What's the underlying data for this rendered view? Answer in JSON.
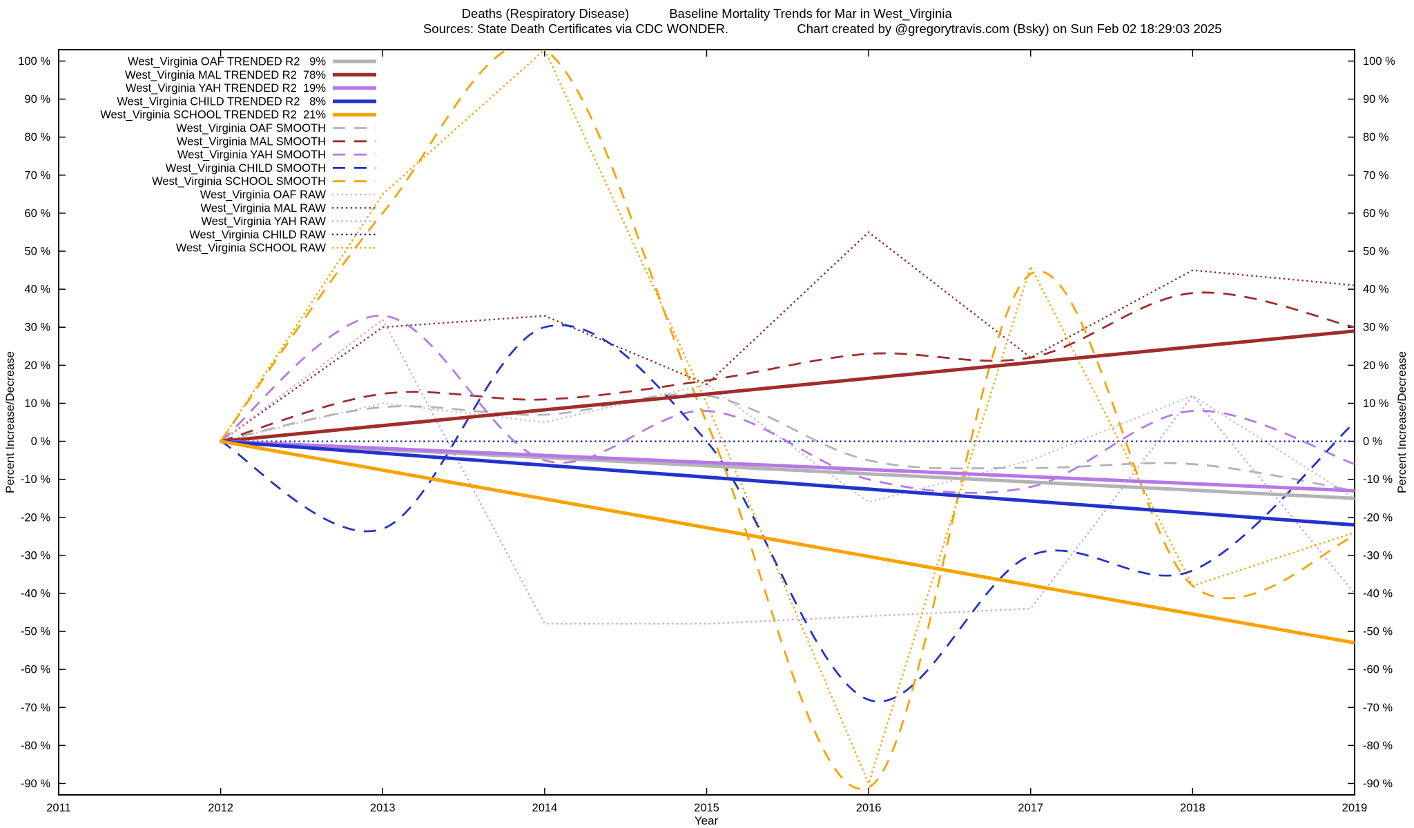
{
  "titles": {
    "line1_left": "Deaths (Respiratory Disease)",
    "line1_right": "Baseline Mortality Trends for Mar in West_Virginia",
    "line2_left": "Sources: State Death Certificates via CDC WONDER.",
    "line2_right": "Chart created by @gregorytravis.com (Bsky) on Sun Feb 02 18:29:03 2025"
  },
  "chart_data": {
    "type": "line",
    "title": "Deaths (Respiratory Disease)  Baseline Mortality Trends for Mar in West_Virginia",
    "xlabel": "Year",
    "ylabel": "Percent Increase/Decrease",
    "y2label": "Percent Increase/Decrease",
    "xlim": [
      2011,
      2019
    ],
    "ylim": [
      -93,
      103
    ],
    "xticks": [
      2011,
      2012,
      2013,
      2014,
      2015,
      2016,
      2017,
      2018,
      2019
    ],
    "yticks": [
      -90,
      -80,
      -70,
      -60,
      -50,
      -40,
      -30,
      -20,
      -10,
      0,
      10,
      20,
      30,
      40,
      50,
      60,
      70,
      80,
      90,
      100
    ],
    "ytick_suffix": " %",
    "grid": false,
    "legend_position": "top-left",
    "series": [
      {
        "id": "oaf-trended",
        "label": "West_Virginia OAF TRENDED R2   9%",
        "r2_percent": 9,
        "color": "#b3b3b3",
        "style": "trended",
        "x": [
          2012,
          2019
        ],
        "y": [
          0,
          -15
        ]
      },
      {
        "id": "mal-trended",
        "label": "West_Virginia MAL TRENDED R2  78%",
        "r2_percent": 78,
        "color": "#a02c2c",
        "style": "trended",
        "x": [
          2012,
          2019
        ],
        "y": [
          0,
          29
        ]
      },
      {
        "id": "yah-trended",
        "label": "West_Virginia YAH TRENDED R2  19%",
        "r2_percent": 19,
        "color": "#b678e6",
        "style": "trended",
        "x": [
          2012,
          2019
        ],
        "y": [
          0,
          -13
        ]
      },
      {
        "id": "child-trended",
        "label": "West_Virginia CHILD TRENDED R2   8%",
        "r2_percent": 8,
        "color": "#2233cc",
        "style": "trended",
        "x": [
          2012,
          2019
        ],
        "y": [
          0,
          -22
        ]
      },
      {
        "id": "school-trended",
        "label": "West_Virginia SCHOOL TRENDED R2  21%",
        "r2_percent": 21,
        "color": "#f7a300",
        "style": "trended",
        "x": [
          2012,
          2019
        ],
        "y": [
          0,
          -53
        ]
      },
      {
        "id": "oaf-smooth",
        "label": "West_Virginia OAF SMOOTH",
        "color": "#b3b3b3",
        "style": "smooth",
        "x": [
          2012,
          2013,
          2014,
          2015,
          2016,
          2017,
          2018,
          2019
        ],
        "y": [
          0,
          9,
          7,
          12,
          -5,
          -7,
          -6,
          -13
        ]
      },
      {
        "id": "mal-smooth",
        "label": "West_Virginia MAL SMOOTH",
        "color": "#a02c2c",
        "style": "smooth",
        "x": [
          2012,
          2013,
          2014,
          2015,
          2016,
          2017,
          2018,
          2019
        ],
        "y": [
          0,
          12.5,
          11,
          16,
          23,
          22,
          39,
          30
        ]
      },
      {
        "id": "yah-smooth",
        "label": "West_Virginia YAH SMOOTH",
        "color": "#b678e6",
        "style": "smooth",
        "x": [
          2012,
          2013,
          2014,
          2015,
          2016,
          2017,
          2018,
          2019
        ],
        "y": [
          0,
          33,
          -5,
          8,
          -10,
          -12,
          8,
          -6
        ]
      },
      {
        "id": "child-smooth",
        "label": "West_Virginia CHILD SMOOTH",
        "color": "#2233cc",
        "style": "smooth",
        "x": [
          2012,
          2013,
          2014,
          2015,
          2016,
          2017,
          2018,
          2019
        ],
        "y": [
          0,
          -23,
          30,
          0,
          -68,
          -30,
          -34,
          5
        ]
      },
      {
        "id": "school-smooth",
        "label": "West_Virginia SCHOOL SMOOTH",
        "color": "#f7a300",
        "style": "smooth",
        "x": [
          2012,
          2013,
          2014,
          2015,
          2016,
          2017,
          2018,
          2019
        ],
        "y": [
          0,
          60,
          103,
          5,
          -91,
          44,
          -38,
          -25
        ]
      },
      {
        "id": "oaf-raw",
        "label": "West_Virginia OAF RAW",
        "color": "#c4c4c4",
        "style": "raw",
        "x": [
          2012,
          2013,
          2014,
          2015,
          2016,
          2017,
          2018,
          2019
        ],
        "y": [
          0,
          10,
          5,
          15,
          -16,
          -5,
          12,
          -15
        ]
      },
      {
        "id": "mal-raw",
        "label": "West_Virginia MAL RAW",
        "color": "#a02c2c",
        "style": "raw",
        "x": [
          2012,
          2013,
          2014,
          2015,
          2016,
          2017,
          2018,
          2019
        ],
        "y": [
          0,
          30,
          33,
          15,
          55,
          22,
          45,
          41
        ]
      },
      {
        "id": "yah-raw",
        "label": "West_Virginia YAH RAW",
        "color": "#cba4f0",
        "style": "raw",
        "x": [
          2012,
          2013,
          2014,
          2015,
          2016,
          2017,
          2018,
          2019
        ],
        "y": [
          0,
          32,
          -48,
          -48,
          -46,
          -44,
          12,
          -40
        ]
      },
      {
        "id": "child-raw",
        "label": "West_Virginia CHILD RAW",
        "color": "#2233cc",
        "style": "raw",
        "x": [
          2012,
          2013,
          2014,
          2015,
          2016,
          2017,
          2018,
          2019
        ],
        "y": [
          0,
          0,
          0,
          0,
          0,
          0,
          0,
          0
        ]
      },
      {
        "id": "school-raw",
        "label": "West_Virginia SCHOOL RAW",
        "color": "#f7a300",
        "style": "raw",
        "x": [
          2012,
          2013,
          2014,
          2015,
          2016,
          2017,
          2018,
          2019
        ],
        "y": [
          0,
          65,
          103,
          10,
          -90,
          46,
          -38,
          -24
        ]
      }
    ]
  }
}
